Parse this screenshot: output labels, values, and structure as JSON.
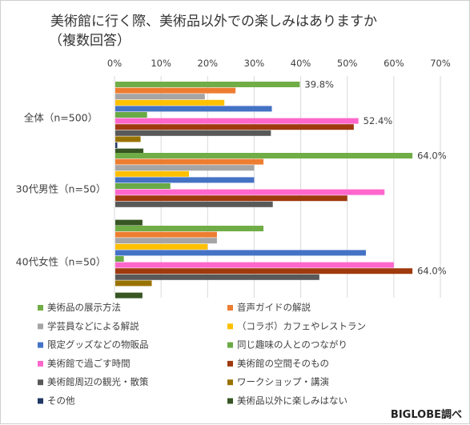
{
  "title_line1": "美術館に行く際、美術品以外での楽しみはありますか",
  "title_line2": "（複数回答）",
  "source": "BIGLOBE調べ",
  "chart_data": {
    "type": "bar",
    "orientation": "horizontal",
    "title": "美術館に行く際、美術品以外での楽しみはありますか（複数回答）",
    "xlim": [
      0,
      70
    ],
    "x_ticks": [
      "0%",
      "10%",
      "20%",
      "30%",
      "40%",
      "50%",
      "60%",
      "70%"
    ],
    "grid": true,
    "legend_position": "bottom",
    "categories": [
      "全体（n=500）",
      "30代男性（n=50）",
      "40代女性（n=50）"
    ],
    "series": [
      {
        "name": "美術品の展示方法",
        "color": "#70ad47",
        "values": [
          39.8,
          64.0,
          32.0
        ]
      },
      {
        "name": "音声ガイドの解説",
        "color": "#ed7d31",
        "values": [
          26.0,
          32.0,
          22.0
        ]
      },
      {
        "name": "学芸員などによる解説",
        "color": "#a5a5a5",
        "values": [
          19.4,
          30.0,
          22.0
        ]
      },
      {
        "name": "（コラボ）カフェやレストラン",
        "color": "#ffc000",
        "values": [
          23.6,
          16.0,
          20.0
        ]
      },
      {
        "name": "限定グッズなどの物販品",
        "color": "#4472c4",
        "values": [
          33.8,
          30.0,
          54.0
        ]
      },
      {
        "name": "同じ趣味の人とのつながり",
        "color": "#6aaa46",
        "values": [
          7.0,
          12.0,
          2.0
        ]
      },
      {
        "name": "美術館で過ごす時間",
        "color": "#ff66cc",
        "values": [
          52.4,
          58.0,
          60.0
        ]
      },
      {
        "name": "美術館の空間そのもの",
        "color": "#9e3a0e",
        "values": [
          51.4,
          50.0,
          64.0
        ]
      },
      {
        "name": "美術館周辺の観光・散策",
        "color": "#595959",
        "values": [
          33.6,
          34.0,
          44.0
        ]
      },
      {
        "name": "ワークショップ・講演",
        "color": "#997300",
        "values": [
          5.6,
          0.0,
          8.0
        ]
      },
      {
        "name": "その他",
        "color": "#203864",
        "values": [
          0.6,
          0.0,
          0.0
        ]
      },
      {
        "name": "美術品以外に楽しみはない",
        "color": "#375623",
        "values": [
          6.2,
          6.0,
          6.0
        ]
      }
    ],
    "data_labels": [
      {
        "category": "全体（n=500）",
        "series": "美術品の展示方法",
        "text": "39.8%"
      },
      {
        "category": "全体（n=500）",
        "series": "美術館で過ごす時間",
        "text": "52.4%"
      },
      {
        "category": "30代男性（n=50）",
        "series": "美術品の展示方法",
        "text": "64.0%"
      },
      {
        "category": "40代女性（n=50）",
        "series": "美術館の空間そのもの",
        "text": "64.0%"
      }
    ]
  }
}
